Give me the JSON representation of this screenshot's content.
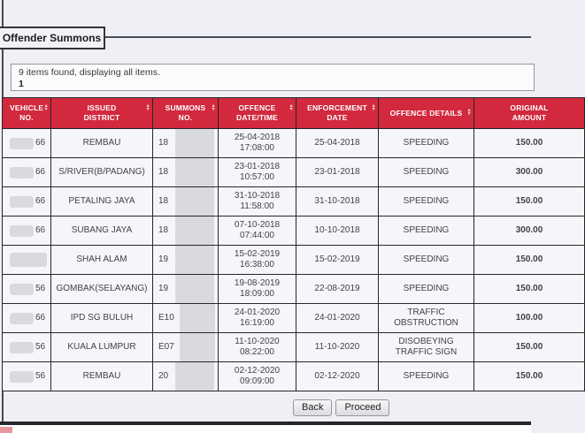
{
  "page": {
    "background": "#eef0f6",
    "accent_red": "#d2293e"
  },
  "panel": {
    "legend": "Offender Summons"
  },
  "results": {
    "summary": "9 items found, displaying all items.",
    "page_number": "1"
  },
  "table": {
    "columns": [
      {
        "line1": "VEHICLE",
        "line2": "NO."
      },
      {
        "line1": "ISSUED",
        "line2": "DISTRICT"
      },
      {
        "line1": "SUMMONS",
        "line2": "NO."
      },
      {
        "line1": "OFFENCE",
        "line2": "DATE/TIME"
      },
      {
        "line1": "ENFORCEMENT",
        "line2": "DATE"
      },
      {
        "line1": "OFFENCE DETAILS",
        "line2": ""
      },
      {
        "line1": "ORIGINAL",
        "line2": "AMOUNT"
      }
    ],
    "rows": [
      {
        "vehicle_suffix": "66",
        "district": "REMBAU",
        "summons_prefix": "18",
        "offence_date": "25-04-2018",
        "offence_time": "17:08:00",
        "enforcement_date": "25-04-2018",
        "offence_details": "SPEEDING",
        "amount": "150.00"
      },
      {
        "vehicle_suffix": "66",
        "district": "S/RIVER(B/PADANG)",
        "summons_prefix": "18",
        "offence_date": "23-01-2018",
        "offence_time": "10:57:00",
        "enforcement_date": "23-01-2018",
        "offence_details": "SPEEDING",
        "amount": "300.00"
      },
      {
        "vehicle_suffix": "66",
        "district": "PETALING JAYA",
        "summons_prefix": "18",
        "offence_date": "31-10-2018",
        "offence_time": "11:58:00",
        "enforcement_date": "31-10-2018",
        "offence_details": "SPEEDING",
        "amount": "150.00"
      },
      {
        "vehicle_suffix": "66",
        "district": "SUBANG JAYA",
        "summons_prefix": "18",
        "offence_date": "07-10-2018",
        "offence_time": "07:44:00",
        "enforcement_date": "10-10-2018",
        "offence_details": "SPEEDING",
        "amount": "300.00"
      },
      {
        "vehicle_suffix": "",
        "district": "SHAH ALAM",
        "summons_prefix": "19",
        "offence_date": "15-02-2019",
        "offence_time": "16:38:00",
        "enforcement_date": "15-02-2019",
        "offence_details": "SPEEDING",
        "amount": "150.00"
      },
      {
        "vehicle_suffix": "56",
        "district": "GOMBAK(SELAYANG)",
        "summons_prefix": "19",
        "offence_date": "19-08-2019",
        "offence_time": "18:09:00",
        "enforcement_date": "22-08-2019",
        "offence_details": "SPEEDING",
        "amount": "150.00"
      },
      {
        "vehicle_suffix": "66",
        "district": "IPD SG BULUH",
        "summons_prefix": "E10",
        "offence_date": "24-01-2020",
        "offence_time": "16:19:00",
        "enforcement_date": "24-01-2020",
        "offence_details": "TRAFFIC OBSTRUCTION",
        "amount": "100.00"
      },
      {
        "vehicle_suffix": "56",
        "district": "KUALA LUMPUR",
        "summons_prefix": "E07",
        "offence_date": "11-10-2020",
        "offence_time": "08:22:00",
        "enforcement_date": "11-10-2020",
        "offence_details": "DISOBEYING TRAFFIC SIGN",
        "amount": "150.00"
      },
      {
        "vehicle_suffix": "56",
        "district": "REMBAU",
        "summons_prefix": "20",
        "offence_date": "02-12-2020",
        "offence_time": "09:09:00",
        "enforcement_date": "02-12-2020",
        "offence_details": "SPEEDING",
        "amount": "150.00"
      }
    ]
  },
  "footer": {
    "back_label": "Back",
    "proceed_label": "Proceed"
  },
  "icons": {
    "sort": "sort-arrows"
  }
}
